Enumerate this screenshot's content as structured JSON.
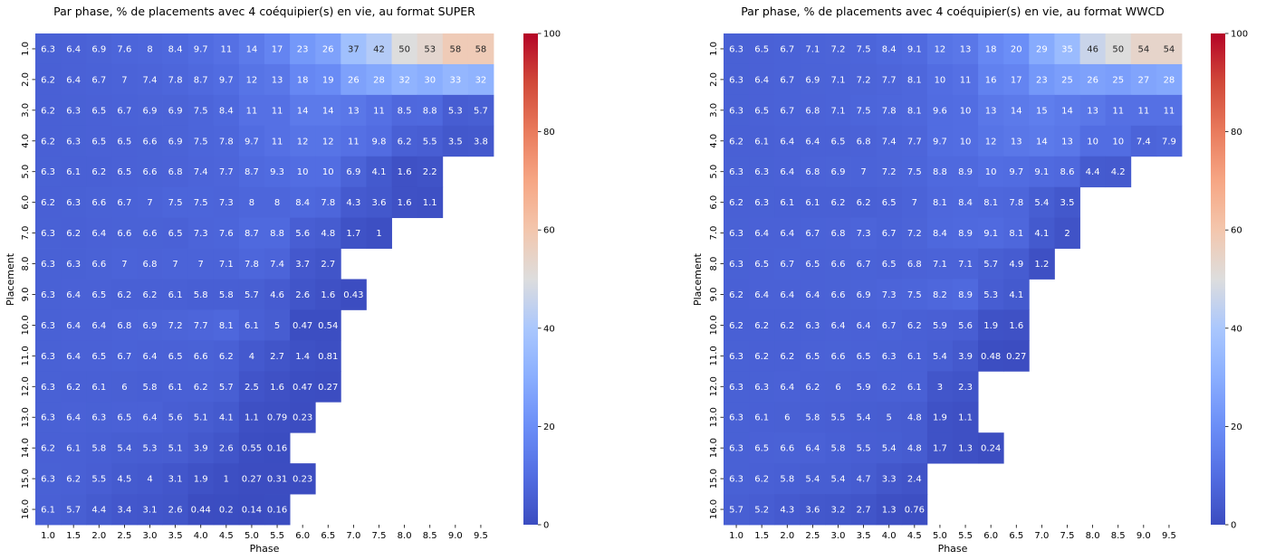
{
  "chart_data": [
    {
      "type": "heatmap",
      "title": "Par phase, % de placements avec 4 coéquipier(s) en vie, au format SUPER",
      "xlabel": "Phase",
      "ylabel": "Placement",
      "x": [
        "1.0",
        "1.5",
        "2.0",
        "2.5",
        "3.0",
        "3.5",
        "4.0",
        "4.5",
        "5.0",
        "5.5",
        "6.0",
        "6.5",
        "7.0",
        "7.5",
        "8.0",
        "8.5",
        "9.0",
        "9.5"
      ],
      "y": [
        "1.0",
        "2.0",
        "3.0",
        "4.0",
        "5.0",
        "6.0",
        "7.0",
        "8.0",
        "9.0",
        "10.0",
        "11.0",
        "12.0",
        "13.0",
        "14.0",
        "15.0",
        "16.0"
      ],
      "values": [
        [
          6.3,
          6.4,
          6.9,
          7.6,
          8,
          8.4,
          9.7,
          11,
          14,
          17,
          23,
          26,
          37,
          42,
          50,
          53,
          58,
          58
        ],
        [
          6.2,
          6.4,
          6.7,
          7,
          7.4,
          7.8,
          8.7,
          9.7,
          12,
          13,
          18,
          19,
          26,
          28,
          32,
          30,
          33,
          32
        ],
        [
          6.2,
          6.3,
          6.5,
          6.7,
          6.9,
          6.9,
          7.5,
          8.4,
          11,
          11,
          14,
          14,
          13,
          11,
          8.5,
          8.8,
          5.3,
          5.7
        ],
        [
          6.2,
          6.3,
          6.5,
          6.5,
          6.6,
          6.9,
          7.5,
          7.8,
          9.7,
          11,
          12,
          12,
          11,
          9.8,
          6.2,
          5.5,
          3.5,
          3.8
        ],
        [
          6.3,
          6.1,
          6.2,
          6.5,
          6.6,
          6.8,
          7.4,
          7.7,
          8.7,
          9.3,
          10,
          10,
          6.9,
          4.1,
          1.6,
          2.2,
          null,
          null
        ],
        [
          6.2,
          6.3,
          6.6,
          6.7,
          7,
          7.5,
          7.5,
          7.3,
          8,
          8,
          8.4,
          7.8,
          4.3,
          3.6,
          1.6,
          1.1,
          null,
          null
        ],
        [
          6.3,
          6.2,
          6.4,
          6.6,
          6.6,
          6.5,
          7.3,
          7.6,
          8.7,
          8.8,
          5.6,
          4.8,
          1.7,
          1,
          null,
          null,
          null,
          null
        ],
        [
          6.3,
          6.3,
          6.6,
          7,
          6.8,
          7,
          7,
          7.1,
          7.8,
          7.4,
          3.7,
          2.7,
          null,
          null,
          null,
          null,
          null,
          null
        ],
        [
          6.3,
          6.4,
          6.5,
          6.2,
          6.2,
          6.1,
          5.8,
          5.8,
          5.7,
          4.6,
          2.6,
          1.6,
          0.43,
          null,
          null,
          null,
          null,
          null
        ],
        [
          6.3,
          6.4,
          6.4,
          6.8,
          6.9,
          7.2,
          7.7,
          8.1,
          6.1,
          5,
          0.47,
          0.54,
          null,
          null,
          null,
          null,
          null,
          null
        ],
        [
          6.3,
          6.4,
          6.5,
          6.7,
          6.4,
          6.5,
          6.6,
          6.2,
          4,
          2.7,
          1.4,
          0.81,
          null,
          null,
          null,
          null,
          null,
          null
        ],
        [
          6.3,
          6.2,
          6.1,
          6,
          5.8,
          6.1,
          6.2,
          5.7,
          2.5,
          1.6,
          0.47,
          0.27,
          null,
          null,
          null,
          null,
          null,
          null
        ],
        [
          6.3,
          6.4,
          6.3,
          6.5,
          6.4,
          5.6,
          5.1,
          4.1,
          1.1,
          0.79,
          0.23,
          null,
          null,
          null,
          null,
          null,
          null,
          null
        ],
        [
          6.2,
          6.1,
          5.8,
          5.4,
          5.3,
          5.1,
          3.9,
          2.6,
          0.55,
          0.16,
          null,
          null,
          null,
          null,
          null,
          null,
          null,
          null
        ],
        [
          6.3,
          6.2,
          5.5,
          4.5,
          4,
          3.1,
          1.9,
          1,
          0.27,
          0.31,
          0.23,
          null,
          null,
          null,
          null,
          null,
          null,
          null
        ],
        [
          6.1,
          5.7,
          4.4,
          3.4,
          3.1,
          2.6,
          0.44,
          0.2,
          0.14,
          0.16,
          null,
          null,
          null,
          null,
          null,
          null,
          null,
          null
        ]
      ],
      "colorbar": {
        "range": [
          0,
          100
        ],
        "ticks": [
          0,
          20,
          40,
          60,
          80,
          100
        ],
        "colormap": "coolwarm"
      }
    },
    {
      "type": "heatmap",
      "title": "Par phase, % de placements avec 4 coéquipier(s) en vie, au format WWCD",
      "xlabel": "Phase",
      "ylabel": "Placement",
      "x": [
        "1.0",
        "1.5",
        "2.0",
        "2.5",
        "3.0",
        "3.5",
        "4.0",
        "4.5",
        "5.0",
        "5.5",
        "6.0",
        "6.5",
        "7.0",
        "7.5",
        "8.0",
        "8.5",
        "9.0",
        "9.5"
      ],
      "y": [
        "1.0",
        "2.0",
        "3.0",
        "4.0",
        "5.0",
        "6.0",
        "7.0",
        "8.0",
        "9.0",
        "10.0",
        "11.0",
        "12.0",
        "13.0",
        "14.0",
        "15.0",
        "16.0"
      ],
      "values": [
        [
          6.3,
          6.5,
          6.7,
          7.1,
          7.2,
          7.5,
          8.4,
          9.1,
          12,
          13,
          18,
          20,
          29,
          35,
          46,
          50,
          54,
          54
        ],
        [
          6.3,
          6.4,
          6.7,
          6.9,
          7.1,
          7.2,
          7.7,
          8.1,
          10,
          11,
          16,
          17,
          23,
          25,
          26,
          25,
          27,
          28
        ],
        [
          6.3,
          6.5,
          6.7,
          6.8,
          7.1,
          7.5,
          7.8,
          8.1,
          9.6,
          10,
          13,
          14,
          15,
          14,
          13,
          11,
          11,
          11
        ],
        [
          6.2,
          6.1,
          6.4,
          6.4,
          6.5,
          6.8,
          7.4,
          7.7,
          9.7,
          10,
          12,
          13,
          14,
          13,
          10,
          10,
          7.4,
          7.9
        ],
        [
          6.3,
          6.3,
          6.4,
          6.8,
          6.9,
          7,
          7.2,
          7.5,
          8.8,
          8.9,
          10,
          9.7,
          9.1,
          8.6,
          4.4,
          4.2,
          null,
          null
        ],
        [
          6.2,
          6.3,
          6.1,
          6.1,
          6.2,
          6.2,
          6.5,
          7,
          8.1,
          8.4,
          8.1,
          7.8,
          5.4,
          3.5,
          null,
          null,
          null,
          null
        ],
        [
          6.3,
          6.4,
          6.4,
          6.7,
          6.8,
          7.3,
          6.7,
          7.2,
          8.4,
          8.9,
          9.1,
          8.1,
          4.1,
          2,
          null,
          null,
          null,
          null
        ],
        [
          6.3,
          6.5,
          6.7,
          6.5,
          6.6,
          6.7,
          6.5,
          6.8,
          7.1,
          7.1,
          5.7,
          4.9,
          1.2,
          null,
          null,
          null,
          null,
          null
        ],
        [
          6.2,
          6.4,
          6.4,
          6.4,
          6.6,
          6.9,
          7.3,
          7.5,
          8.2,
          8.9,
          5.3,
          4.1,
          null,
          null,
          null,
          null,
          null,
          null
        ],
        [
          6.2,
          6.2,
          6.2,
          6.3,
          6.4,
          6.4,
          6.7,
          6.2,
          5.9,
          5.6,
          1.9,
          1.6,
          null,
          null,
          null,
          null,
          null,
          null
        ],
        [
          6.3,
          6.2,
          6.2,
          6.5,
          6.6,
          6.5,
          6.3,
          6.1,
          5.4,
          3.9,
          0.48,
          0.27,
          null,
          null,
          null,
          null,
          null,
          null
        ],
        [
          6.3,
          6.3,
          6.4,
          6.2,
          6,
          5.9,
          6.2,
          6.1,
          3,
          2.3,
          null,
          null,
          null,
          null,
          null,
          null,
          null,
          null
        ],
        [
          6.3,
          6.1,
          6,
          5.8,
          5.5,
          5.4,
          5,
          4.8,
          1.9,
          1.1,
          null,
          null,
          null,
          null,
          null,
          null,
          null,
          null
        ],
        [
          6.3,
          6.5,
          6.6,
          6.4,
          5.8,
          5.5,
          5.4,
          4.8,
          1.7,
          1.3,
          0.24,
          null,
          null,
          null,
          null,
          null,
          null,
          null
        ],
        [
          6.3,
          6.2,
          5.8,
          5.4,
          5.4,
          4.7,
          3.3,
          2.4,
          null,
          null,
          null,
          null,
          null,
          null,
          null,
          null,
          null,
          null
        ],
        [
          5.7,
          5.2,
          4.3,
          3.6,
          3.2,
          2.7,
          1.3,
          0.76,
          null,
          null,
          null,
          null,
          null,
          null,
          null,
          null,
          null,
          null
        ]
      ],
      "colorbar": {
        "range": [
          0,
          100
        ],
        "ticks": [
          0,
          20,
          40,
          60,
          80,
          100
        ],
        "colormap": "coolwarm"
      }
    }
  ]
}
